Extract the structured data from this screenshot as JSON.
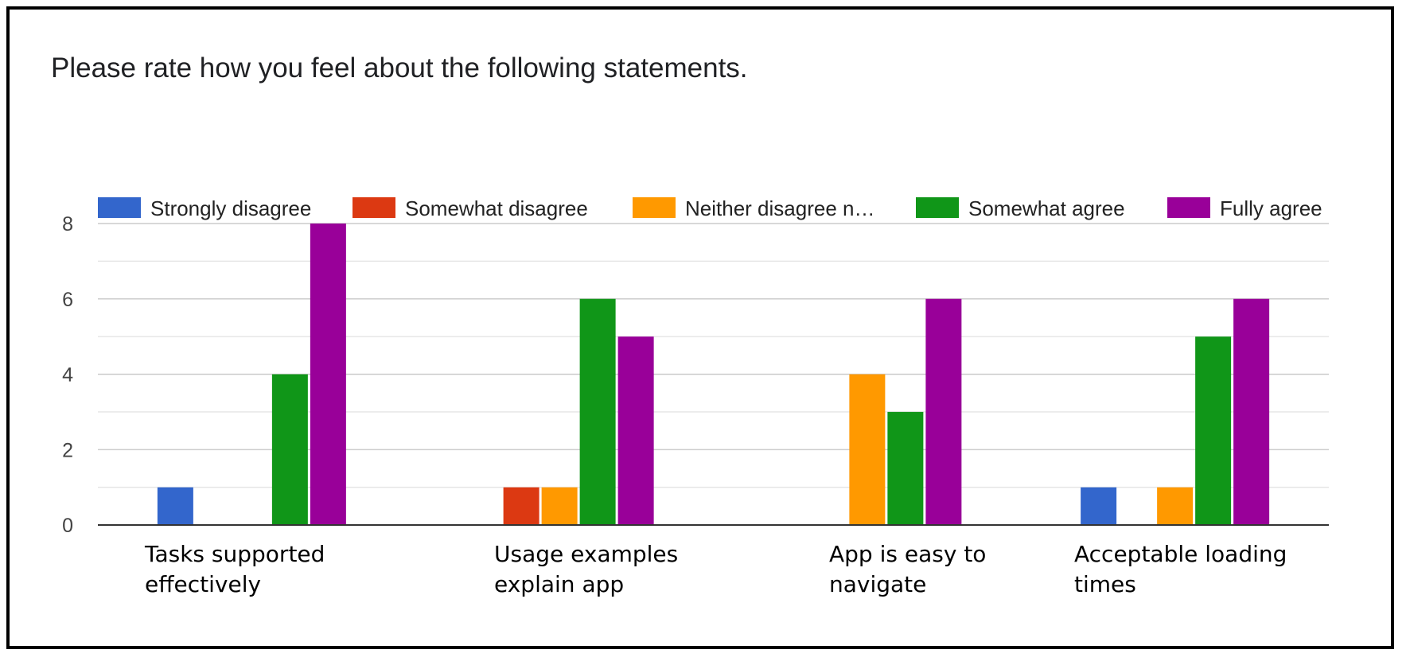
{
  "question": "Please rate how you feel about the following statements.",
  "chart_data": {
    "type": "bar",
    "categories": [
      [
        "Tasks supported",
        "effectively"
      ],
      [
        "Usage examples",
        "explain app"
      ],
      [
        "App is easy to",
        "navigate"
      ],
      [
        "Acceptable loading",
        "times"
      ]
    ],
    "series": [
      {
        "name": "Strongly disagree",
        "color": "#3366cc",
        "values": [
          1,
          0,
          0,
          1
        ]
      },
      {
        "name": "Somewhat disagree",
        "color": "#dc3912",
        "values": [
          0,
          1,
          0,
          0
        ]
      },
      {
        "name": "Neither disagree n…",
        "color": "#ff9900",
        "values": [
          0,
          1,
          4,
          1
        ]
      },
      {
        "name": "Somewhat agree",
        "color": "#109618",
        "values": [
          4,
          6,
          3,
          5
        ]
      },
      {
        "name": "Fully agree",
        "color": "#990099",
        "values": [
          8,
          5,
          6,
          6
        ]
      }
    ],
    "yticks": [
      0,
      2,
      4,
      6,
      8
    ],
    "ylim": [
      0,
      8
    ],
    "grid": true,
    "legend_position": "top"
  }
}
